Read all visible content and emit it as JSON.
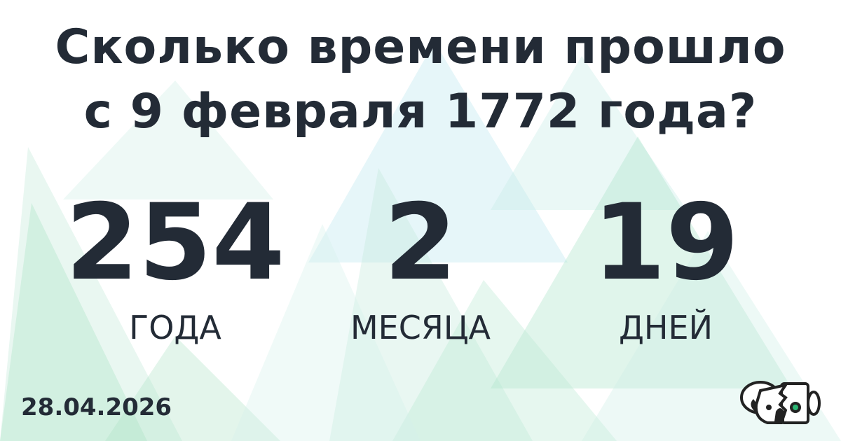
{
  "title_line1": "Сколько времени прошло",
  "title_line2": "с 9 февраля 1772 года?",
  "result": [
    {
      "value": "254",
      "unit": "ГОДА"
    },
    {
      "value": "2",
      "unit": "МЕСЯЦА"
    },
    {
      "value": "19",
      "unit": "ДНЕЙ"
    }
  ],
  "date": "28.04.2026",
  "logo": "koala-robot-logo",
  "colors": {
    "text": "#232b36",
    "triangle_green": "#a8e6c8",
    "triangle_blue": "#a8e0ea",
    "logo_accent": "#2bb673"
  }
}
